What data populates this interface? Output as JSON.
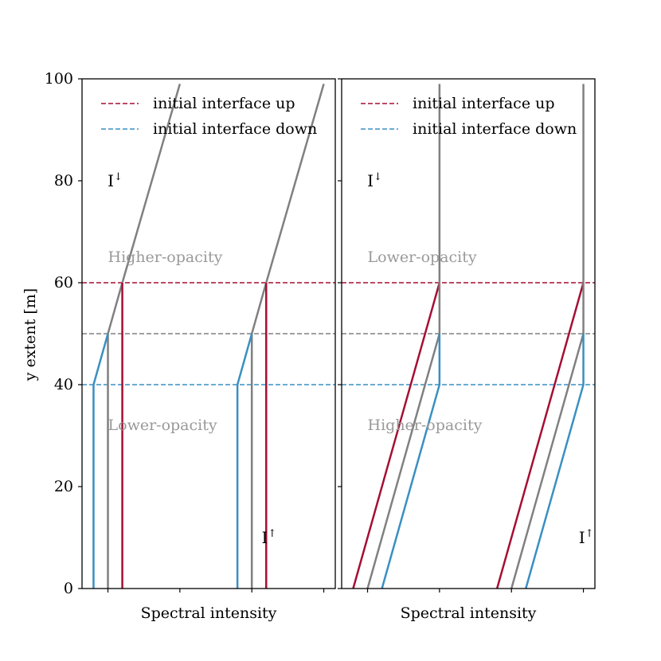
{
  "figure": {
    "ylabel": "y extent [m]"
  },
  "colors": {
    "up": "#a50f33",
    "down": "#3a8fc2",
    "mid": "#808080",
    "region_text": "#999999"
  },
  "chart_data": [
    {
      "type": "line",
      "xlabel": "Spectral intensity",
      "ylabel": "y extent [m]",
      "ylim": [
        0,
        100
      ],
      "xlim": [
        -0.18,
        1.58
      ],
      "yticks": [
        0,
        20,
        40,
        60,
        80,
        100
      ],
      "xticks": [
        0,
        0.5,
        1,
        1.5
      ],
      "grid": false,
      "legend": {
        "placement": "top-left",
        "entries": [
          {
            "label": "initial interface up",
            "color": "#a50f33",
            "style": "dashed"
          },
          {
            "label": "initial interface down",
            "color": "#3a8fc2",
            "style": "dashed"
          }
        ]
      },
      "hlines": [
        {
          "y": 60,
          "color": "#a50f33",
          "style": "dashed"
        },
        {
          "y": 50,
          "color": "#808080",
          "style": "dashed"
        },
        {
          "y": 40,
          "color": "#3a8fc2",
          "style": "dashed"
        }
      ],
      "series": [
        {
          "color": "#808080",
          "x": [
            0.0,
            0.0,
            0.1,
            0.5
          ],
          "y": [
            0,
            50,
            60,
            99
          ]
        },
        {
          "color": "#a50f33",
          "x": [
            0.1,
            0.1
          ],
          "y": [
            0,
            60
          ]
        },
        {
          "color": "#3a8fc2",
          "x": [
            -0.1,
            -0.1,
            0.0
          ],
          "y": [
            0,
            40,
            50
          ]
        },
        {
          "color": "#808080",
          "x": [
            1.0,
            1.0,
            1.1,
            1.5
          ],
          "y": [
            0,
            50,
            60,
            99
          ]
        },
        {
          "color": "#a50f33",
          "x": [
            1.1,
            1.1
          ],
          "y": [
            0,
            60
          ]
        },
        {
          "color": "#3a8fc2",
          "x": [
            0.9,
            0.9,
            1.0
          ],
          "y": [
            0,
            40,
            50
          ]
        }
      ],
      "annotations": [
        {
          "text": "I",
          "sup": "↓",
          "x": 0.05,
          "y": 80,
          "kind": "label"
        },
        {
          "text": "I",
          "sup": "↑",
          "x": 1.12,
          "y": 10,
          "kind": "label"
        },
        {
          "text": "Higher-opacity",
          "x": 0.0,
          "y": 65,
          "kind": "region"
        },
        {
          "text": "Lower-opacity",
          "x": 0.0,
          "y": 32,
          "kind": "region"
        }
      ]
    },
    {
      "type": "line",
      "xlabel": "Spectral intensity",
      "ylabel": "",
      "ylim": [
        0,
        100
      ],
      "xlim": [
        -0.18,
        1.58
      ],
      "yticks": [
        0,
        20,
        40,
        60,
        80,
        100
      ],
      "xticks": [
        0,
        0.5,
        1,
        1.5
      ],
      "grid": false,
      "legend": {
        "placement": "top-left",
        "entries": [
          {
            "label": "initial interface up",
            "color": "#a50f33",
            "style": "dashed"
          },
          {
            "label": "initial interface down",
            "color": "#3a8fc2",
            "style": "dashed"
          }
        ]
      },
      "hlines": [
        {
          "y": 60,
          "color": "#a50f33",
          "style": "dashed"
        },
        {
          "y": 50,
          "color": "#808080",
          "style": "dashed"
        },
        {
          "y": 40,
          "color": "#3a8fc2",
          "style": "dashed"
        }
      ],
      "series": [
        {
          "color": "#a50f33",
          "x": [
            -0.1,
            0.5
          ],
          "y": [
            0,
            60
          ]
        },
        {
          "color": "#808080",
          "x": [
            0.0,
            0.5,
            0.5
          ],
          "y": [
            0,
            50,
            99
          ]
        },
        {
          "color": "#3a8fc2",
          "x": [
            0.1,
            0.5,
            0.5
          ],
          "y": [
            0,
            40,
            50
          ]
        },
        {
          "color": "#a50f33",
          "x": [
            0.9,
            1.5
          ],
          "y": [
            0,
            60
          ]
        },
        {
          "color": "#808080",
          "x": [
            1.0,
            1.5,
            1.5
          ],
          "y": [
            0,
            50,
            99
          ]
        },
        {
          "color": "#3a8fc2",
          "x": [
            1.1,
            1.5,
            1.5
          ],
          "y": [
            0,
            40,
            50
          ]
        }
      ],
      "annotations": [
        {
          "text": "I",
          "sup": "↓",
          "x": 0.05,
          "y": 80,
          "kind": "label"
        },
        {
          "text": "I",
          "sup": "↑",
          "x": 1.52,
          "y": 10,
          "kind": "label"
        },
        {
          "text": "Lower-opacity",
          "x": 0.0,
          "y": 65,
          "kind": "region"
        },
        {
          "text": "Higher-opacity",
          "x": 0.0,
          "y": 32,
          "kind": "region"
        }
      ]
    }
  ]
}
